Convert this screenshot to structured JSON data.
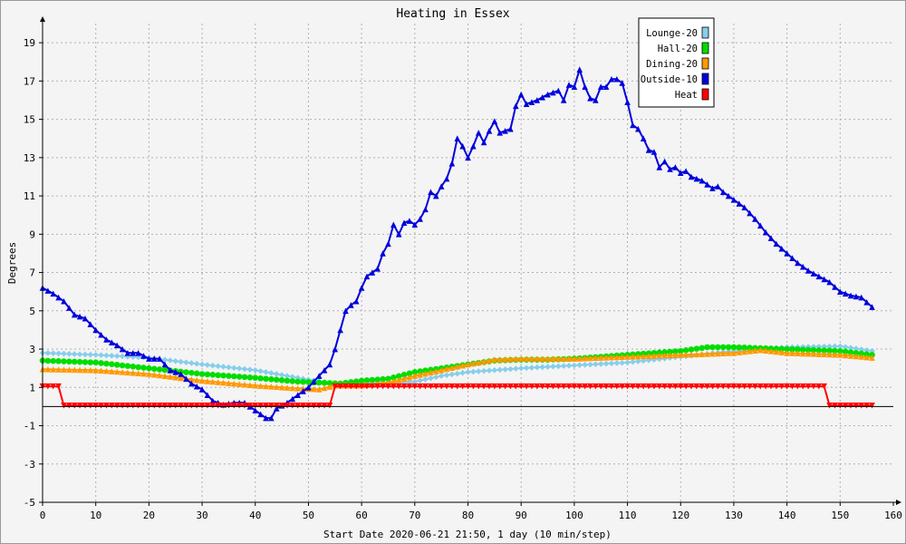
{
  "chart_data": {
    "type": "line",
    "title": "Heating in Essex",
    "xlabel": "Start Date 2020-06-21 21:50, 1 day (10 min/step)",
    "ylabel": "Degrees",
    "xlim": [
      0,
      160
    ],
    "ylim": [
      -5,
      20
    ],
    "xticks": [
      0,
      10,
      20,
      30,
      40,
      50,
      60,
      70,
      80,
      90,
      100,
      110,
      120,
      130,
      140,
      150,
      160
    ],
    "yticks": [
      -5,
      -3,
      -1,
      1,
      3,
      5,
      7,
      9,
      11,
      13,
      15,
      17,
      19
    ],
    "grid": true,
    "legend_position": "top-right",
    "zero_line": 0,
    "series": [
      {
        "name": "Lounge-20",
        "color": "#87ceeb",
        "marker": "diamond",
        "points": [
          [
            0,
            2.8
          ],
          [
            10,
            2.7
          ],
          [
            20,
            2.55
          ],
          [
            30,
            2.2
          ],
          [
            40,
            1.9
          ],
          [
            46,
            1.6
          ],
          [
            50,
            1.4
          ],
          [
            55,
            1.2
          ],
          [
            60,
            1.2
          ],
          [
            70,
            1.3
          ],
          [
            75,
            1.6
          ],
          [
            80,
            1.8
          ],
          [
            85,
            1.9
          ],
          [
            90,
            2.0
          ],
          [
            100,
            2.15
          ],
          [
            110,
            2.3
          ],
          [
            120,
            2.6
          ],
          [
            130,
            2.9
          ],
          [
            140,
            3.1
          ],
          [
            150,
            3.15
          ],
          [
            156,
            2.9
          ]
        ]
      },
      {
        "name": "Hall-20",
        "color": "#00dd00",
        "marker": "circle",
        "points": [
          [
            0,
            2.4
          ],
          [
            10,
            2.3
          ],
          [
            20,
            2.0
          ],
          [
            30,
            1.7
          ],
          [
            40,
            1.5
          ],
          [
            48,
            1.3
          ],
          [
            52,
            1.25
          ],
          [
            56,
            1.2
          ],
          [
            60,
            1.35
          ],
          [
            65,
            1.45
          ],
          [
            70,
            1.8
          ],
          [
            75,
            2.0
          ],
          [
            80,
            2.2
          ],
          [
            85,
            2.4
          ],
          [
            90,
            2.45
          ],
          [
            95,
            2.45
          ],
          [
            100,
            2.5
          ],
          [
            110,
            2.7
          ],
          [
            120,
            2.9
          ],
          [
            125,
            3.1
          ],
          [
            130,
            3.1
          ],
          [
            140,
            3.0
          ],
          [
            150,
            2.9
          ],
          [
            156,
            2.7
          ]
        ]
      },
      {
        "name": "Dining-20",
        "color": "#ff9900",
        "marker": "triangle",
        "points": [
          [
            0,
            1.95
          ],
          [
            10,
            1.9
          ],
          [
            20,
            1.7
          ],
          [
            30,
            1.35
          ],
          [
            40,
            1.1
          ],
          [
            48,
            0.95
          ],
          [
            52,
            0.9
          ],
          [
            55,
            1.1
          ],
          [
            60,
            1.1
          ],
          [
            65,
            1.25
          ],
          [
            70,
            1.6
          ],
          [
            75,
            1.9
          ],
          [
            80,
            2.2
          ],
          [
            85,
            2.45
          ],
          [
            90,
            2.5
          ],
          [
            100,
            2.5
          ],
          [
            110,
            2.6
          ],
          [
            120,
            2.7
          ],
          [
            130,
            2.8
          ],
          [
            135,
            2.95
          ],
          [
            140,
            2.8
          ],
          [
            150,
            2.7
          ],
          [
            156,
            2.55
          ]
        ]
      },
      {
        "name": "Outside-10",
        "color": "#0000dd",
        "marker": "triangle",
        "points": [
          [
            0,
            6.2
          ],
          [
            2,
            5.9
          ],
          [
            4,
            5.5
          ],
          [
            6,
            4.8
          ],
          [
            8,
            4.6
          ],
          [
            10,
            4.0
          ],
          [
            12,
            3.5
          ],
          [
            14,
            3.2
          ],
          [
            16,
            2.8
          ],
          [
            18,
            2.8
          ],
          [
            20,
            2.5
          ],
          [
            22,
            2.5
          ],
          [
            24,
            1.9
          ],
          [
            26,
            1.7
          ],
          [
            28,
            1.2
          ],
          [
            30,
            0.9
          ],
          [
            32,
            0.3
          ],
          [
            34,
            0.1
          ],
          [
            36,
            0.2
          ],
          [
            38,
            0.2
          ],
          [
            40,
            -0.2
          ],
          [
            42,
            -0.6
          ],
          [
            43,
            -0.6
          ],
          [
            44,
            -0.1
          ],
          [
            46,
            0.2
          ],
          [
            48,
            0.6
          ],
          [
            50,
            1.0
          ],
          [
            52,
            1.6
          ],
          [
            54,
            2.2
          ],
          [
            55,
            3.0
          ],
          [
            56,
            4.0
          ],
          [
            57,
            5.0
          ],
          [
            58,
            5.3
          ],
          [
            59,
            5.5
          ],
          [
            60,
            6.2
          ],
          [
            61,
            6.8
          ],
          [
            62,
            7.0
          ],
          [
            63,
            7.2
          ],
          [
            64,
            8.0
          ],
          [
            65,
            8.5
          ],
          [
            66,
            9.5
          ],
          [
            67,
            9.0
          ],
          [
            68,
            9.6
          ],
          [
            69,
            9.7
          ],
          [
            70,
            9.5
          ],
          [
            71,
            9.8
          ],
          [
            72,
            10.3
          ],
          [
            73,
            11.2
          ],
          [
            74,
            11.0
          ],
          [
            75,
            11.5
          ],
          [
            76,
            11.9
          ],
          [
            77,
            12.7
          ],
          [
            78,
            14.0
          ],
          [
            79,
            13.6
          ],
          [
            80,
            13.0
          ],
          [
            81,
            13.6
          ],
          [
            82,
            14.3
          ],
          [
            83,
            13.8
          ],
          [
            84,
            14.4
          ],
          [
            85,
            14.9
          ],
          [
            86,
            14.3
          ],
          [
            88,
            14.5
          ],
          [
            89,
            15.7
          ],
          [
            90,
            16.3
          ],
          [
            91,
            15.8
          ],
          [
            93,
            16.0
          ],
          [
            95,
            16.3
          ],
          [
            97,
            16.5
          ],
          [
            98,
            16.0
          ],
          [
            99,
            16.8
          ],
          [
            100,
            16.7
          ],
          [
            101,
            17.6
          ],
          [
            102,
            16.7
          ],
          [
            103,
            16.1
          ],
          [
            104,
            16.0
          ],
          [
            105,
            16.7
          ],
          [
            106,
            16.7
          ],
          [
            107,
            17.1
          ],
          [
            108,
            17.1
          ],
          [
            109,
            16.9
          ],
          [
            110,
            15.9
          ],
          [
            111,
            14.7
          ],
          [
            112,
            14.5
          ],
          [
            113,
            14.0
          ],
          [
            114,
            13.4
          ],
          [
            115,
            13.3
          ],
          [
            116,
            12.5
          ],
          [
            117,
            12.8
          ],
          [
            118,
            12.4
          ],
          [
            119,
            12.5
          ],
          [
            120,
            12.2
          ],
          [
            121,
            12.3
          ],
          [
            122,
            12.0
          ],
          [
            123,
            11.9
          ],
          [
            124,
            11.8
          ],
          [
            125,
            11.6
          ],
          [
            126,
            11.4
          ],
          [
            127,
            11.5
          ],
          [
            128,
            11.2
          ],
          [
            130,
            10.8
          ],
          [
            132,
            10.4
          ],
          [
            134,
            9.8
          ],
          [
            136,
            9.1
          ],
          [
            138,
            8.5
          ],
          [
            140,
            8.0
          ],
          [
            142,
            7.5
          ],
          [
            144,
            7.1
          ],
          [
            146,
            6.8
          ],
          [
            148,
            6.5
          ],
          [
            150,
            6.0
          ],
          [
            152,
            5.8
          ],
          [
            154,
            5.7
          ],
          [
            156,
            5.2
          ]
        ]
      },
      {
        "name": "Heat",
        "color": "#ff0000",
        "marker": "triangle-down",
        "points": [
          [
            0,
            1.05
          ],
          [
            3.5,
            1.05
          ],
          [
            4,
            0.05
          ],
          [
            54,
            0.05
          ],
          [
            55,
            1.05
          ],
          [
            147,
            1.05
          ],
          [
            148,
            0.05
          ],
          [
            156,
            0.05
          ]
        ]
      }
    ]
  }
}
